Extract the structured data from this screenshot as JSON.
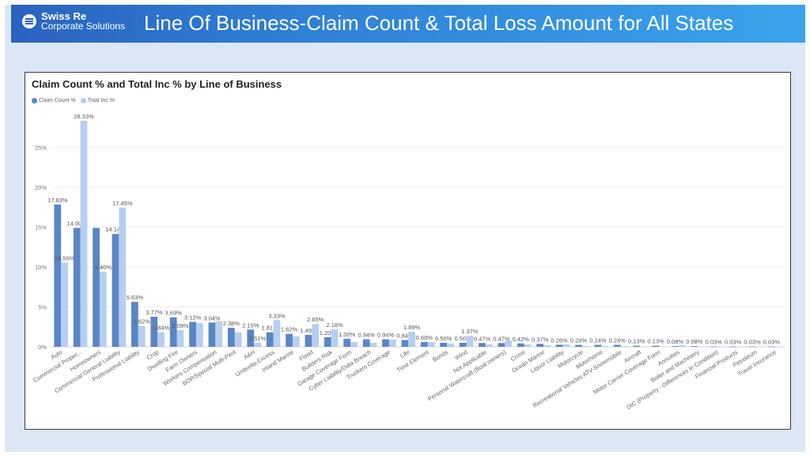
{
  "header": {
    "brand_line1": "Swiss Re",
    "brand_line2": "Corporate Solutions",
    "title": "Line Of Business-Claim Count & Total Loss Amount for All States"
  },
  "colors": {
    "claim": "#5a86c5",
    "total": "#b5cff0",
    "header_start": "#2a63bf",
    "header_end": "#3aa3ec"
  },
  "chart_data": {
    "type": "bar",
    "title": "Claim Count % and Total Inc % by Line of Business",
    "legend_position": "top-left",
    "ylim": [
      0,
      30
    ],
    "yticks": [
      "0%",
      "5%",
      "10%",
      "15%",
      "20%",
      "25%"
    ],
    "categories": [
      "Auto",
      "Commercial Proper...",
      "Homeowners",
      "Commercial General Liability",
      "Professional Liability",
      "Crop",
      "Dwelling Fire",
      "Farm Owners",
      "Workers Compensation",
      "BOP/Special Multi-Peril",
      "A&H",
      "Umbrella-Excess",
      "Inland Marine",
      "Flood",
      "Builders Risk",
      "Garage Coverage Form",
      "Cyber Liability/Data Breach",
      "Truckers Coverage",
      "Life",
      "Time Element",
      "Bonds",
      "Wind",
      "Not Applicable",
      "Personal Watercraft (Boat owners)",
      "Crime",
      "Ocean Marine",
      "Liquor Liability",
      "Motorcycle",
      "Motorhome",
      "Recreational Vehicles ATV-Snowmobile",
      "Aircraft",
      "Motor Carrier Coverage Form",
      "Annuities",
      "Boiler and Machinery",
      "DIC (Property - Differences In Condition)",
      "Financial Products",
      "Petroleum",
      "Travel Insurance"
    ],
    "series": [
      {
        "name": "Claim Count %",
        "values": [
          17.83,
          14.9,
          14.9,
          14.14,
          5.63,
          3.77,
          3.69,
          3.12,
          3.04,
          2.38,
          2.15,
          1.81,
          1.62,
          1.49,
          1.2,
          1.0,
          0.94,
          0.94,
          0.84,
          0.6,
          0.5,
          0.5,
          0.47,
          0.47,
          0.42,
          0.37,
          0.26,
          0.24,
          0.24,
          0.24,
          0.13,
          0.13,
          0.08,
          0.08,
          0.03,
          0.03,
          0.03,
          0.03
        ],
        "labels": [
          "17.83%",
          "14.90%",
          "",
          "14.14%",
          "5.63%",
          "3.77%",
          "3.69%",
          "3.12%",
          "3.04%",
          "2.38%",
          "2.15%",
          "1.81%",
          "1.62%",
          "1.49%",
          "1.20%",
          "1.00%",
          "0.94%",
          "0.94%",
          "0.84%",
          "0.60%",
          "0.50%",
          "0.50%",
          "0.47%",
          "0.47%",
          "0.42%",
          "0.37%",
          "0.26%",
          "0.24%",
          "0.24%",
          "0.24%",
          "0.13%",
          "0.13%",
          "0.08%",
          "0.08%",
          "0.03%",
          "0.03%",
          "0.03%",
          "0.03%"
        ]
      },
      {
        "name": "Total Inc %",
        "values": [
          10.55,
          28.33,
          9.4,
          17.45,
          2.62,
          1.84,
          2.09,
          3.0,
          3.2,
          1.8,
          0.51,
          3.33,
          1.3,
          2.85,
          2.18,
          0.6,
          0.5,
          0.9,
          1.89,
          0.6,
          0.4,
          1.37,
          0.3,
          0.8,
          0.3,
          0.2,
          0.3,
          0.1,
          0.1,
          0.1,
          0.05,
          0.05,
          0.2,
          0.05,
          0.02,
          0.02,
          0.02,
          0.02
        ],
        "labels": [
          "10.55%",
          "28.33%",
          "9.40%",
          "17.45%",
          "2.62%",
          "1.84%",
          "2.09%",
          "",
          "",
          "",
          "0.51%",
          "3.33%",
          "",
          "2.85%",
          "2.18%",
          "",
          "",
          "",
          "1.89%",
          "",
          "",
          "1.37%",
          "",
          "",
          "",
          "",
          "",
          "",
          "",
          "",
          "",
          "",
          "",
          "",
          "",
          "",
          "",
          ""
        ]
      }
    ]
  }
}
